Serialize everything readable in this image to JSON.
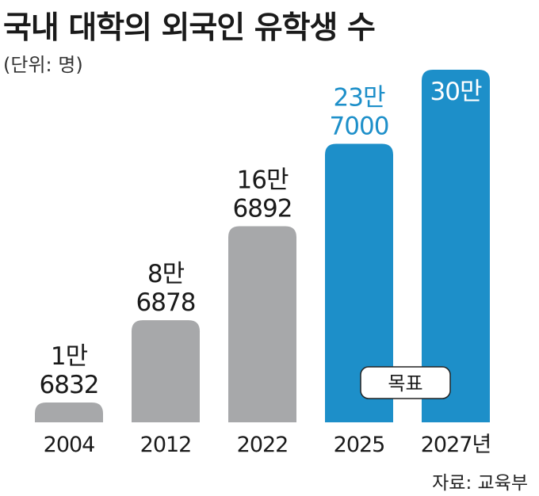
{
  "title": "국내 대학의 외국인 유학생 수",
  "unit": "(단위: 명)",
  "source": "자료: 교육부",
  "chart_data": {
    "type": "bar",
    "categories": [
      "2004",
      "2012",
      "2022",
      "2025",
      "2027년"
    ],
    "values": [
      16832,
      86878,
      166892,
      237000,
      300000
    ],
    "value_labels": [
      [
        "1만",
        "6832"
      ],
      [
        "8만",
        "6878"
      ],
      [
        "16만",
        "6892"
      ],
      [
        "23만",
        "7000"
      ],
      [
        "30만"
      ]
    ],
    "target_label": "목표",
    "ylim": [
      0,
      300000
    ],
    "grid": false,
    "colors": {
      "actual": "#a7a8aa",
      "target": "#1d8fc9",
      "text": "#1a1a1a"
    }
  }
}
